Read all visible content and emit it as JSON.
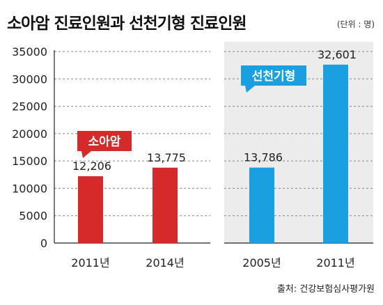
{
  "header": {
    "title": "소아암 진료인원과 선천기형 진료인원",
    "unit": "(단위 : 명)"
  },
  "footer": {
    "source": "출처: 건강보험심사평가원"
  },
  "colors": {
    "red": "#d42a2a",
    "blue": "#1a9fe0",
    "shade": "#ececec"
  },
  "chart_data": [
    {
      "type": "bar",
      "badge": "소아암",
      "color": "#d42a2a",
      "categories": [
        "2011년",
        "2014년"
      ],
      "values": [
        12206,
        13775
      ],
      "value_labels": [
        "12,206",
        "13,775"
      ],
      "ylim": [
        0,
        35000
      ],
      "yticks": [
        "0",
        "5000",
        "10000",
        "15000",
        "20000",
        "25000",
        "30000",
        "35000"
      ],
      "grid": true
    },
    {
      "type": "bar",
      "badge": "선천기형",
      "color": "#1a9fe0",
      "categories": [
        "2005년",
        "2011년"
      ],
      "values": [
        13786,
        32601
      ],
      "value_labels": [
        "13,786",
        "32,601"
      ],
      "ylim": [
        0,
        35000
      ],
      "grid": true
    }
  ]
}
